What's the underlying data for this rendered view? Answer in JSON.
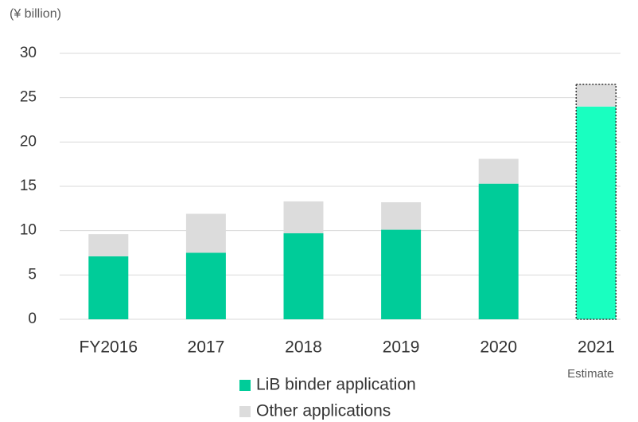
{
  "chart_data": {
    "type": "stacked_bar",
    "y_axis_label": "(¥ billion)",
    "categories": [
      "FY2016",
      "2017",
      "2018",
      "2019",
      "2020",
      "2021"
    ],
    "series": [
      {
        "name": "LiB binder application",
        "color": "#00cc99",
        "values": [
          7.1,
          7.5,
          9.7,
          10.1,
          15.3,
          24.0
        ]
      },
      {
        "name": "Other applications",
        "color": "#dcdcdc",
        "values": [
          2.5,
          4.4,
          3.6,
          3.1,
          2.8,
          2.5
        ]
      }
    ],
    "highlight": {
      "index": 5,
      "color": "#19ffc0"
    },
    "annotation": "Estimate",
    "ylim": [
      0,
      30
    ],
    "yticks": [
      0,
      5,
      10,
      15,
      20,
      25,
      30
    ],
    "grid": true
  }
}
